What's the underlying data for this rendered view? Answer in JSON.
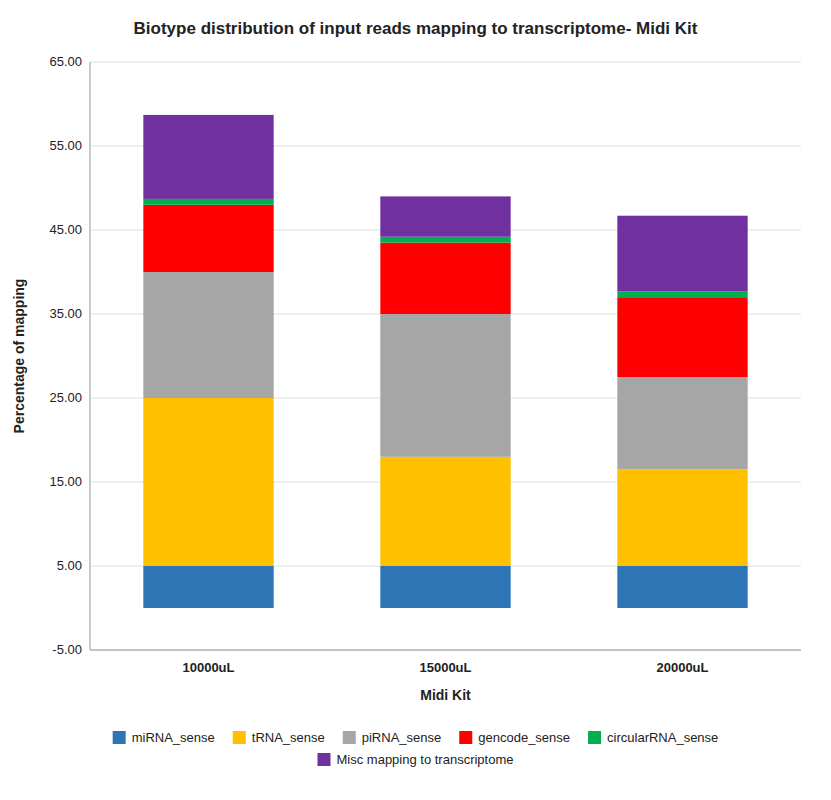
{
  "chart_data": {
    "type": "bar",
    "stacked": true,
    "title": "Biotype distribution of input reads mapping to transcriptome- Midi Kit",
    "x_label": "Midi Kit",
    "y_label": "Percentage of mapping",
    "categories": [
      "10000uL",
      "15000uL",
      "20000uL"
    ],
    "series": [
      {
        "name": "miRNA_sense",
        "color": "#2E75B6",
        "values": [
          5.0,
          5.0,
          5.0
        ]
      },
      {
        "name": "tRNA_sense",
        "color": "#FFC000",
        "values": [
          20.0,
          13.0,
          11.5
        ]
      },
      {
        "name": "piRNA_sense",
        "color": "#A6A6A6",
        "values": [
          15.0,
          17.0,
          11.0
        ]
      },
      {
        "name": "gencode_sense",
        "color": "#FF0000",
        "values": [
          8.0,
          8.5,
          9.5
        ]
      },
      {
        "name": "circularRNA_sense",
        "color": "#00B050",
        "values": [
          0.7,
          0.7,
          0.7
        ]
      },
      {
        "name": "Misc mapping to transcriptome",
        "color": "#7030A0",
        "values": [
          10.0,
          4.8,
          9.0
        ]
      }
    ],
    "ylim": [
      -5,
      65
    ],
    "yticks": [
      {
        "value": -5.0,
        "label": "-5.00"
      },
      {
        "value": 5.0,
        "label": "5.00"
      },
      {
        "value": 15.0,
        "label": "15.00"
      },
      {
        "value": 25.0,
        "label": "25.00"
      },
      {
        "value": 35.0,
        "label": "35.00"
      },
      {
        "value": 45.0,
        "label": "45.00"
      },
      {
        "value": 55.0,
        "label": "55.00"
      },
      {
        "value": 65.0,
        "label": "65.00"
      }
    ],
    "grid": true,
    "legend": "bottom"
  }
}
